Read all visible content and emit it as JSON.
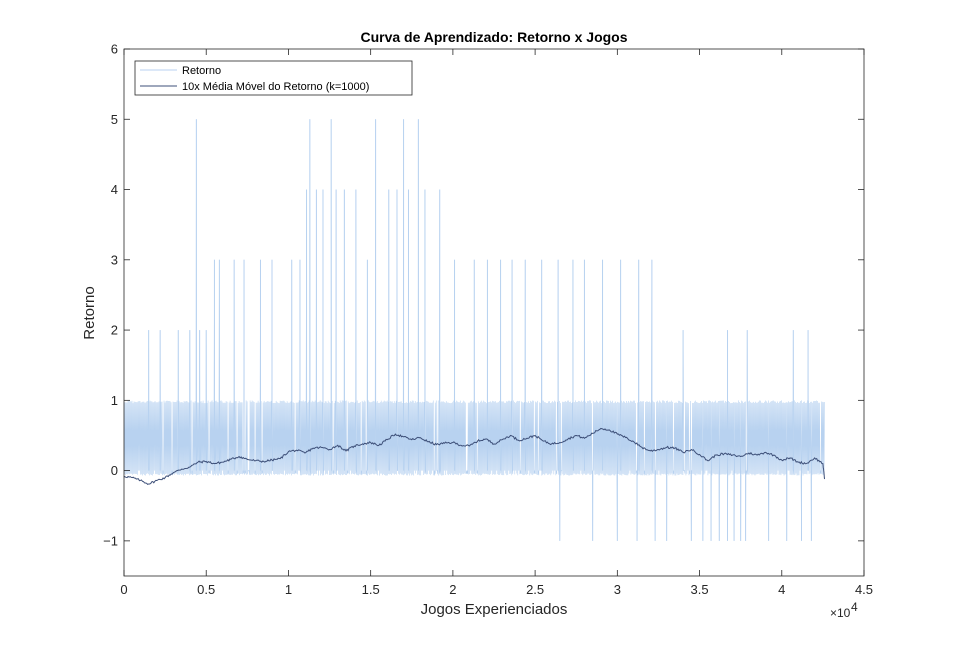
{
  "chart_data": {
    "type": "line",
    "title": "Curva de Aprendizado: Retorno x Jogos",
    "xlabel": "Jogos Experienciados",
    "ylabel": "Retorno",
    "xlim": [
      0,
      45000
    ],
    "ylim": [
      -1.5,
      6
    ],
    "x_ticks": [
      0,
      5000,
      10000,
      15000,
      20000,
      25000,
      30000,
      35000,
      40000,
      45000
    ],
    "x_tick_labels": [
      "0",
      "0.5",
      "1",
      "1.5",
      "2",
      "2.5",
      "3",
      "3.5",
      "4",
      "4.5"
    ],
    "x_exponent_label": "×10",
    "x_exponent_power": "4",
    "y_ticks": [
      -1,
      0,
      1,
      2,
      3,
      4,
      5,
      6
    ],
    "y_tick_labels": [
      "−1",
      "0",
      "1",
      "2",
      "3",
      "4",
      "5",
      "6"
    ],
    "grid": false,
    "legend_position": "top-left",
    "series": [
      {
        "name": "Retorno",
        "color": "#b8d2f0",
        "style": "dense-noisy",
        "x_range": [
          0,
          42600
        ],
        "typical_range": [
          -0.07,
          1
        ],
        "spikes": [
          {
            "x": 4400,
            "y": 5
          },
          {
            "x": 11300,
            "y": 5
          },
          {
            "x": 12600,
            "y": 5
          },
          {
            "x": 15300,
            "y": 5
          },
          {
            "x": 17000,
            "y": 5
          },
          {
            "x": 17900,
            "y": 5
          },
          {
            "x": 1500,
            "y": 2
          },
          {
            "x": 2200,
            "y": 2
          },
          {
            "x": 3300,
            "y": 2
          },
          {
            "x": 4000,
            "y": 2
          },
          {
            "x": 4600,
            "y": 2
          },
          {
            "x": 5000,
            "y": 2
          },
          {
            "x": 5500,
            "y": 3
          },
          {
            "x": 5800,
            "y": 3
          },
          {
            "x": 6700,
            "y": 3
          },
          {
            "x": 7300,
            "y": 3
          },
          {
            "x": 8300,
            "y": 3
          },
          {
            "x": 9000,
            "y": 3
          },
          {
            "x": 10200,
            "y": 3
          },
          {
            "x": 10700,
            "y": 3
          },
          {
            "x": 11100,
            "y": 4
          },
          {
            "x": 11700,
            "y": 4
          },
          {
            "x": 12100,
            "y": 4
          },
          {
            "x": 12900,
            "y": 4
          },
          {
            "x": 13400,
            "y": 4
          },
          {
            "x": 14100,
            "y": 4
          },
          {
            "x": 14800,
            "y": 3
          },
          {
            "x": 16100,
            "y": 4
          },
          {
            "x": 16600,
            "y": 4
          },
          {
            "x": 17300,
            "y": 4
          },
          {
            "x": 18300,
            "y": 4
          },
          {
            "x": 19200,
            "y": 4
          },
          {
            "x": 20100,
            "y": 3
          },
          {
            "x": 21300,
            "y": 3
          },
          {
            "x": 22100,
            "y": 3
          },
          {
            "x": 22900,
            "y": 3
          },
          {
            "x": 23600,
            "y": 3
          },
          {
            "x": 24400,
            "y": 3
          },
          {
            "x": 25400,
            "y": 3
          },
          {
            "x": 26400,
            "y": 3
          },
          {
            "x": 27300,
            "y": 3
          },
          {
            "x": 28000,
            "y": 3
          },
          {
            "x": 29100,
            "y": 3
          },
          {
            "x": 30200,
            "y": 3
          },
          {
            "x": 31300,
            "y": 3
          },
          {
            "x": 32100,
            "y": 3
          },
          {
            "x": 34000,
            "y": 2
          },
          {
            "x": 36700,
            "y": 2
          },
          {
            "x": 37900,
            "y": 2
          },
          {
            "x": 40700,
            "y": 2
          },
          {
            "x": 41600,
            "y": 2
          },
          {
            "x": 26500,
            "y": -1
          },
          {
            "x": 28500,
            "y": -1
          },
          {
            "x": 30000,
            "y": -1
          },
          {
            "x": 31200,
            "y": -1
          },
          {
            "x": 32300,
            "y": -1
          },
          {
            "x": 33000,
            "y": -1
          },
          {
            "x": 34500,
            "y": -1
          },
          {
            "x": 35200,
            "y": -1
          },
          {
            "x": 35700,
            "y": -1
          },
          {
            "x": 36200,
            "y": -1
          },
          {
            "x": 36700,
            "y": -1
          },
          {
            "x": 37100,
            "y": -1
          },
          {
            "x": 37500,
            "y": -1
          },
          {
            "x": 37800,
            "y": -1
          },
          {
            "x": 39200,
            "y": -1
          },
          {
            "x": 40300,
            "y": -1
          },
          {
            "x": 41200,
            "y": -1
          },
          {
            "x": 41800,
            "y": -1
          }
        ]
      },
      {
        "name": "10x Média Móvel do Retorno (k=1000)",
        "color": "#3d4f78",
        "x": [
          0,
          500,
          1000,
          1500,
          2000,
          2500,
          3000,
          3500,
          4000,
          4500,
          5000,
          5500,
          6000,
          6500,
          7000,
          7500,
          8000,
          8500,
          9000,
          9500,
          10000,
          10500,
          11000,
          11500,
          12000,
          12500,
          13000,
          13500,
          14000,
          14500,
          15000,
          15500,
          16000,
          16500,
          17000,
          17500,
          18000,
          18500,
          19000,
          19500,
          20000,
          20500,
          21000,
          21500,
          22000,
          22500,
          23000,
          23500,
          24000,
          24500,
          25000,
          25500,
          26000,
          26500,
          27000,
          27500,
          28000,
          28500,
          29000,
          29500,
          30000,
          30500,
          31000,
          31500,
          32000,
          32500,
          33000,
          33500,
          34000,
          34500,
          35000,
          35500,
          36000,
          36500,
          37000,
          37500,
          38000,
          38500,
          39000,
          39500,
          40000,
          40500,
          41000,
          41500,
          42000,
          42500,
          42600
        ],
        "y": [
          -0.08,
          -0.1,
          -0.14,
          -0.19,
          -0.14,
          -0.1,
          -0.03,
          0.02,
          0.05,
          0.12,
          0.13,
          0.1,
          0.12,
          0.16,
          0.2,
          0.16,
          0.14,
          0.13,
          0.15,
          0.17,
          0.27,
          0.29,
          0.25,
          0.32,
          0.33,
          0.3,
          0.36,
          0.28,
          0.35,
          0.38,
          0.4,
          0.36,
          0.44,
          0.52,
          0.48,
          0.44,
          0.47,
          0.41,
          0.37,
          0.39,
          0.4,
          0.36,
          0.35,
          0.42,
          0.45,
          0.38,
          0.44,
          0.5,
          0.43,
          0.46,
          0.5,
          0.42,
          0.38,
          0.4,
          0.45,
          0.5,
          0.46,
          0.53,
          0.6,
          0.58,
          0.52,
          0.47,
          0.41,
          0.33,
          0.28,
          0.3,
          0.33,
          0.32,
          0.26,
          0.3,
          0.23,
          0.14,
          0.22,
          0.24,
          0.22,
          0.2,
          0.25,
          0.22,
          0.26,
          0.22,
          0.15,
          0.18,
          0.12,
          0.1,
          0.18,
          0.1,
          -0.12
        ]
      }
    ]
  }
}
